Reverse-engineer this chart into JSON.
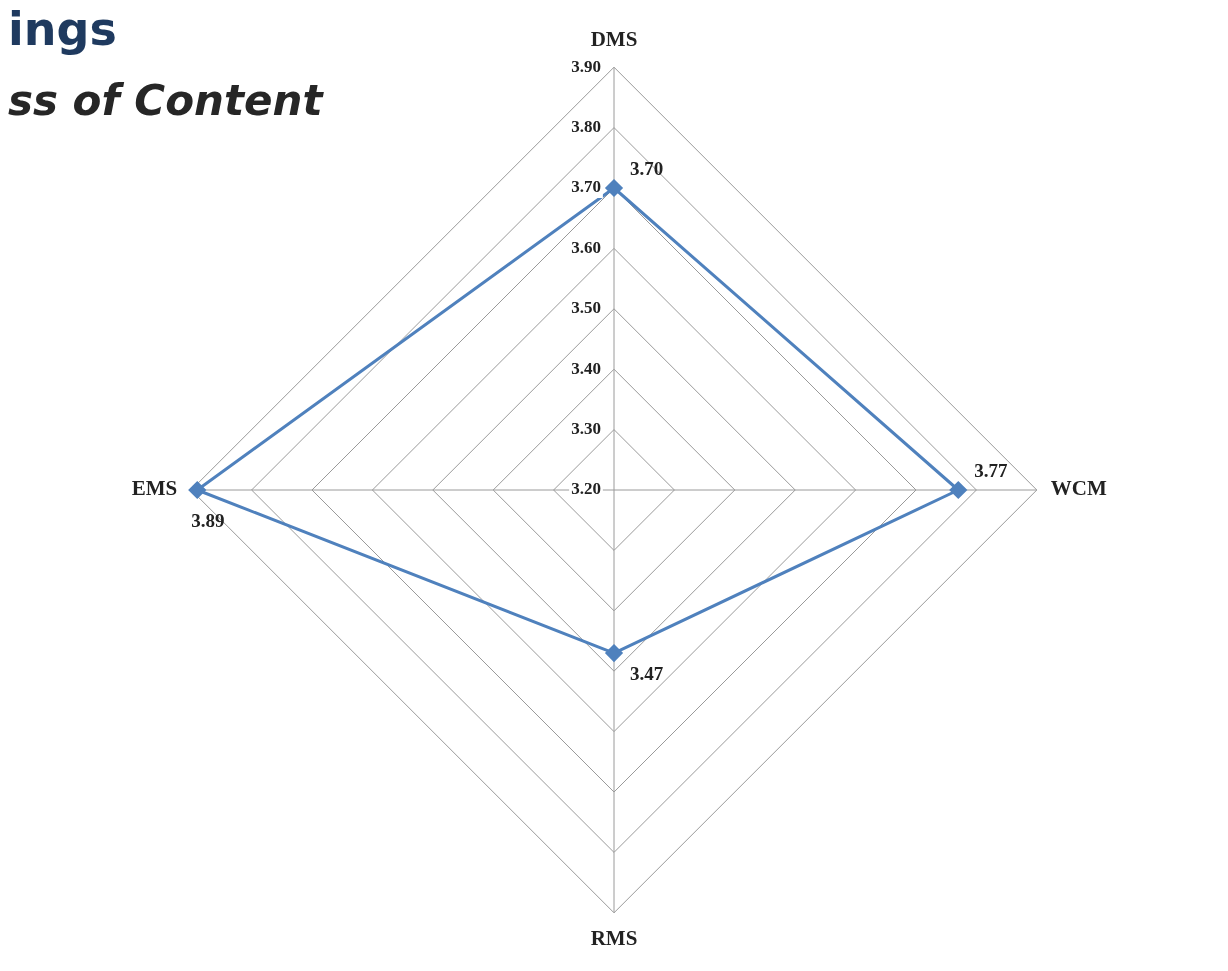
{
  "chart_data": {
    "type": "radar",
    "title": "ings",
    "subtitle": "ss of Content",
    "categories": [
      "DMS",
      "WCM",
      "RMS",
      "EMS"
    ],
    "series": [
      {
        "color": "#4f81bd",
        "values": [
          3.7,
          3.77,
          3.47,
          3.89
        ],
        "value_labels": [
          "3.70",
          "3.77",
          "3.47",
          "3.89"
        ]
      }
    ],
    "ylim": [
      3.2,
      3.9
    ],
    "yticks": [
      {
        "value": 3.2,
        "label": "3.20"
      },
      {
        "value": 3.3,
        "label": "3.30"
      },
      {
        "value": 3.4,
        "label": "3.40"
      },
      {
        "value": 3.5,
        "label": "3.50"
      },
      {
        "value": 3.6,
        "label": "3.60"
      },
      {
        "value": 3.7,
        "label": "3.70"
      },
      {
        "value": 3.8,
        "label": "3.80"
      },
      {
        "value": 3.9,
        "label": "3.90"
      }
    ],
    "grid": true,
    "legend": false,
    "marker": "diamond",
    "line_style": "solid"
  }
}
